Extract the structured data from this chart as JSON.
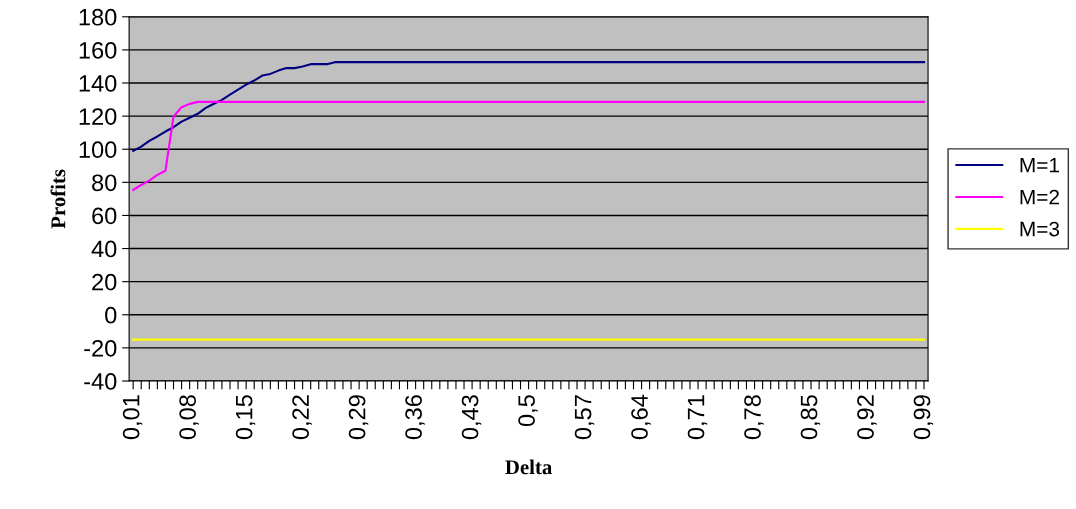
{
  "chart_data": {
    "type": "line",
    "xlabel": "Delta",
    "ylabel": "Profits",
    "categories": [
      "0,01",
      null,
      null,
      null,
      null,
      null,
      null,
      "0,08",
      null,
      null,
      null,
      null,
      null,
      null,
      "0,15",
      null,
      null,
      null,
      null,
      null,
      null,
      "0,22",
      null,
      null,
      null,
      null,
      null,
      null,
      "0,29",
      null,
      null,
      null,
      null,
      null,
      null,
      "0,36",
      null,
      null,
      null,
      null,
      null,
      null,
      "0,43",
      null,
      null,
      null,
      null,
      null,
      null,
      "0,5",
      null,
      null,
      null,
      null,
      null,
      null,
      "0,57",
      null,
      null,
      null,
      null,
      null,
      null,
      "0,64",
      null,
      null,
      null,
      null,
      null,
      null,
      "0,71",
      null,
      null,
      null,
      null,
      null,
      null,
      "0,78",
      null,
      null,
      null,
      null,
      null,
      null,
      "0,85",
      null,
      null,
      null,
      null,
      null,
      null,
      "0,92",
      null,
      null,
      null,
      null,
      null,
      null,
      "0,99"
    ],
    "series": [
      {
        "name": "M=1",
        "color": "#000080",
        "values": [
          99,
          101.6,
          105,
          107.7,
          110.7,
          113.3,
          116.7,
          119,
          121.4,
          125,
          127.5,
          129.8,
          133,
          136,
          139,
          141.5,
          144.5,
          145.5,
          147.5,
          149,
          149,
          150,
          151.4,
          151.4,
          151.4,
          152.6,
          152.6,
          152.6,
          152.6,
          152.6,
          152.6,
          152.6,
          152.6,
          152.6,
          152.6,
          152.6,
          152.6,
          152.6,
          152.6,
          152.6,
          152.6,
          152.6,
          152.6,
          152.6,
          152.6,
          152.6,
          152.6,
          152.6,
          152.6,
          152.6,
          152.6,
          152.6,
          152.6,
          152.6,
          152.6,
          152.6,
          152.6,
          152.6,
          152.6,
          152.6,
          152.6,
          152.6,
          152.6,
          152.6,
          152.6,
          152.6,
          152.6,
          152.6,
          152.6,
          152.6,
          152.6,
          152.6,
          152.6,
          152.6,
          152.6,
          152.6,
          152.6,
          152.6,
          152.6,
          152.6,
          152.6,
          152.6,
          152.6,
          152.6,
          152.6,
          152.6,
          152.6,
          152.6,
          152.6,
          152.6,
          152.6,
          152.6,
          152.6,
          152.6,
          152.6,
          152.6,
          152.6,
          152.6,
          152.6
        ]
      },
      {
        "name": "M=2",
        "color": "#ff00ff",
        "values": [
          75.4,
          78.4,
          81,
          84.5,
          87,
          119.7,
          125.4,
          127.4,
          128.6,
          128.6,
          128.6,
          128.6,
          128.6,
          128.6,
          128.6,
          128.6,
          128.6,
          128.6,
          128.6,
          128.6,
          128.6,
          128.6,
          128.6,
          128.6,
          128.6,
          128.6,
          128.6,
          128.6,
          128.6,
          128.6,
          128.6,
          128.6,
          128.6,
          128.6,
          128.6,
          128.6,
          128.6,
          128.6,
          128.6,
          128.6,
          128.6,
          128.6,
          128.6,
          128.6,
          128.6,
          128.6,
          128.6,
          128.6,
          128.6,
          128.6,
          128.6,
          128.6,
          128.6,
          128.6,
          128.6,
          128.6,
          128.6,
          128.6,
          128.6,
          128.6,
          128.6,
          128.6,
          128.6,
          128.6,
          128.6,
          128.6,
          128.6,
          128.6,
          128.6,
          128.6,
          128.6,
          128.6,
          128.6,
          128.6,
          128.6,
          128.6,
          128.6,
          128.6,
          128.6,
          128.6,
          128.6,
          128.6,
          128.6,
          128.6,
          128.6,
          128.6,
          128.6,
          128.6,
          128.6,
          128.6,
          128.6,
          128.6,
          128.6,
          128.6,
          128.6,
          128.6,
          128.6,
          128.6,
          128.6
        ]
      },
      {
        "name": "M=3",
        "color": "#ffff00",
        "values": [
          -15,
          -15,
          -15,
          -15,
          -15,
          -15,
          -15,
          -15,
          -15,
          -15,
          -15,
          -15,
          -15,
          -15,
          -15,
          -15,
          -15,
          -15,
          -15,
          -15,
          -15,
          -15,
          -15,
          -15,
          -15,
          -15,
          -15,
          -15,
          -15,
          -15,
          -15,
          -15,
          -15,
          -15,
          -15,
          -15,
          -15,
          -15,
          -15,
          -15,
          -15,
          -15,
          -15,
          -15,
          -15,
          -15,
          -15,
          -15,
          -15,
          -15,
          -15,
          -15,
          -15,
          -15,
          -15,
          -15,
          -15,
          -15,
          -15,
          -15,
          -15,
          -15,
          -15,
          -15,
          -15,
          -15,
          -15,
          -15,
          -15,
          -15,
          -15,
          -15,
          -15,
          -15,
          -15,
          -15,
          -15,
          -15,
          -15,
          -15,
          -15,
          -15,
          -15,
          -15,
          -15,
          -15,
          -15,
          -15,
          -15,
          -15,
          -15,
          -15,
          -15,
          -15,
          -15,
          -15,
          -15,
          -15,
          -15
        ]
      }
    ],
    "ylim": [
      -40,
      180
    ],
    "yticks": [
      -40,
      -20,
      0,
      20,
      40,
      60,
      80,
      100,
      120,
      140,
      160,
      180
    ],
    "grid": "y",
    "legend": "right",
    "marker": "none",
    "line_style": "solid"
  }
}
